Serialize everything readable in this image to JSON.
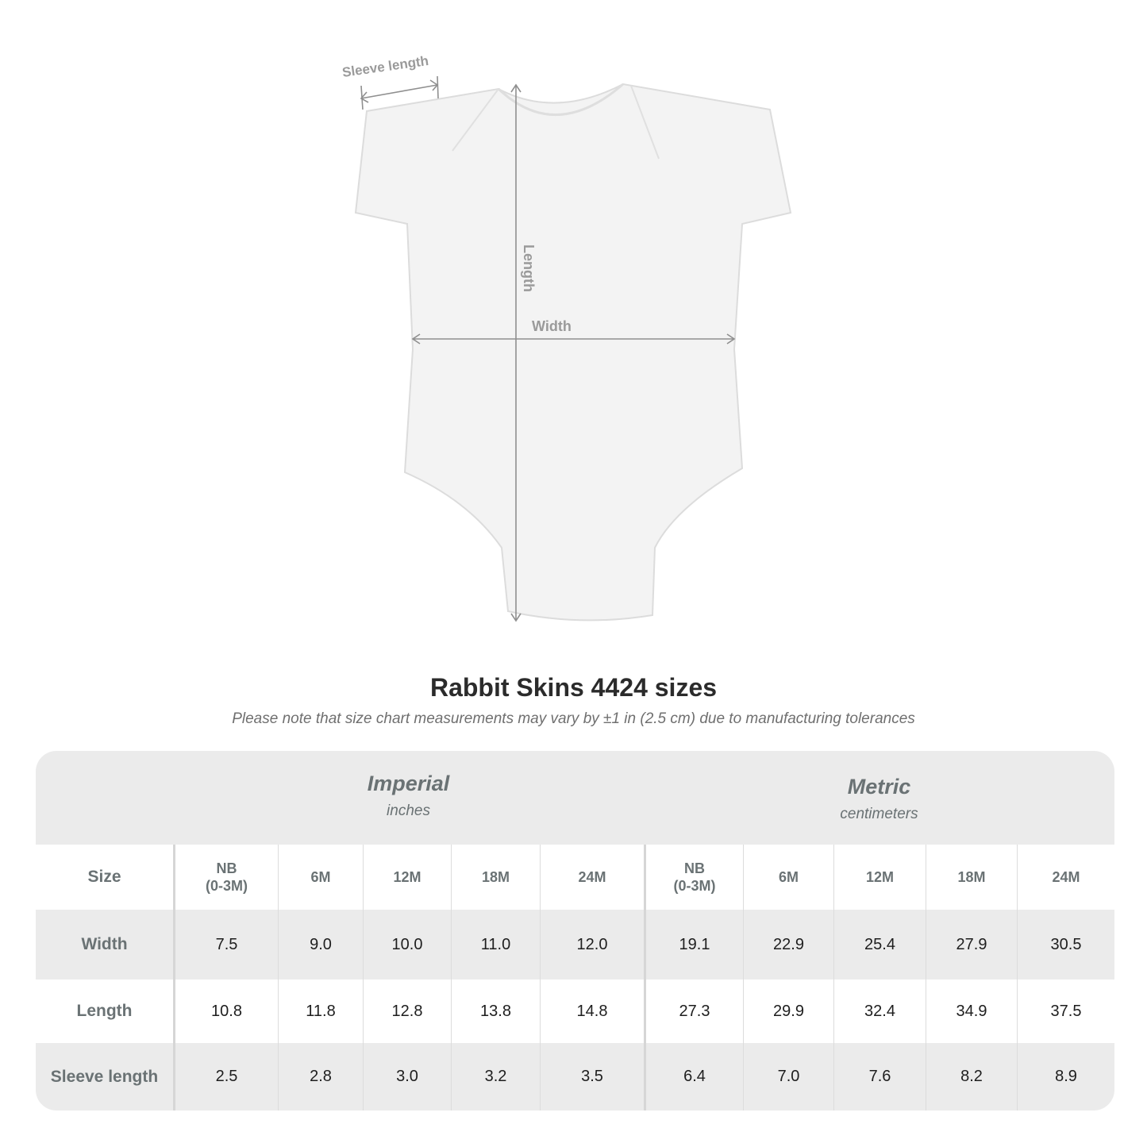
{
  "diagram": {
    "labels": {
      "sleeve": "Sleeve length",
      "length": "Length",
      "width": "Width"
    },
    "line_color": "#8f8f8f"
  },
  "title": "Rabbit Skins 4424 sizes",
  "note": "Please note that size chart measurements may vary by ±1 in (2.5 cm) due to manufacturing tolerances",
  "table": {
    "imperial": {
      "name": "Imperial",
      "unit": "inches"
    },
    "metric": {
      "name": "Metric",
      "unit": "centimeters"
    },
    "size_label": "Size",
    "sizes": [
      "NB\n(0-3M)",
      "6M",
      "12M",
      "18M",
      "24M"
    ],
    "rows": [
      {
        "label": "Width",
        "imperial": [
          "7.5",
          "9.0",
          "10.0",
          "11.0",
          "12.0"
        ],
        "metric": [
          "19.1",
          "22.9",
          "25.4",
          "27.9",
          "30.5"
        ]
      },
      {
        "label": "Length",
        "imperial": [
          "10.8",
          "11.8",
          "12.8",
          "13.8",
          "14.8"
        ],
        "metric": [
          "27.3",
          "29.9",
          "32.4",
          "34.9",
          "37.5"
        ]
      },
      {
        "label": "Sleeve length",
        "imperial": [
          "2.5",
          "2.8",
          "3.0",
          "3.2",
          "3.5"
        ],
        "metric": [
          "6.4",
          "7.0",
          "7.6",
          "8.2",
          "8.9"
        ]
      }
    ],
    "colors": {
      "band": "#ebebeb",
      "header_text": "#6a7274"
    }
  }
}
